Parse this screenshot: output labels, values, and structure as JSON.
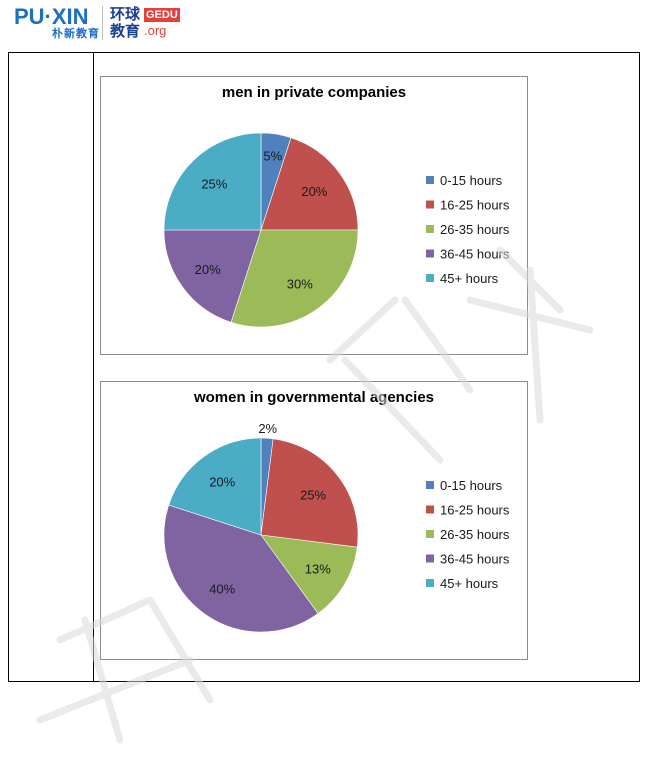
{
  "header": {
    "puxin_logo": "PU·XIN",
    "puxin_sub": "朴新教育",
    "gedu_cn_top": "环球",
    "gedu_cn_bottom": "教育",
    "gedu_badge": "GEDU",
    "gedu_org": ".org",
    "colors": {
      "puxin_blue": "#1a6fc9",
      "puxin_accent": "#2aa9e0",
      "gedu_red": "#e5413a",
      "gedu_navy": "#1a3f8f"
    }
  },
  "chart_data": [
    {
      "type": "pie",
      "title": "men in private companies",
      "categories": [
        "0-15 hours",
        "16-25 hours",
        "26-35 hours",
        "36-45 hours",
        "45+ hours"
      ],
      "values": [
        5,
        20,
        30,
        20,
        25
      ],
      "labels": [
        "5%",
        "20%",
        "30%",
        "20%",
        "25%"
      ],
      "colors": [
        "#4f81bd",
        "#c0504d",
        "#9bbb59",
        "#8064a2",
        "#4bacc6"
      ],
      "legend": "right"
    },
    {
      "type": "pie",
      "title": "women in governmental agencies",
      "categories": [
        "0-15 hours",
        "16-25 hours",
        "26-35 hours",
        "36-45 hours",
        "45+ hours"
      ],
      "values": [
        2,
        25,
        13,
        40,
        20
      ],
      "labels": [
        "2%",
        "25%",
        "13%",
        "40%",
        "20%"
      ],
      "colors": [
        "#4f81bd",
        "#c0504d",
        "#9bbb59",
        "#8064a2",
        "#4bacc6"
      ],
      "legend": "right"
    }
  ]
}
